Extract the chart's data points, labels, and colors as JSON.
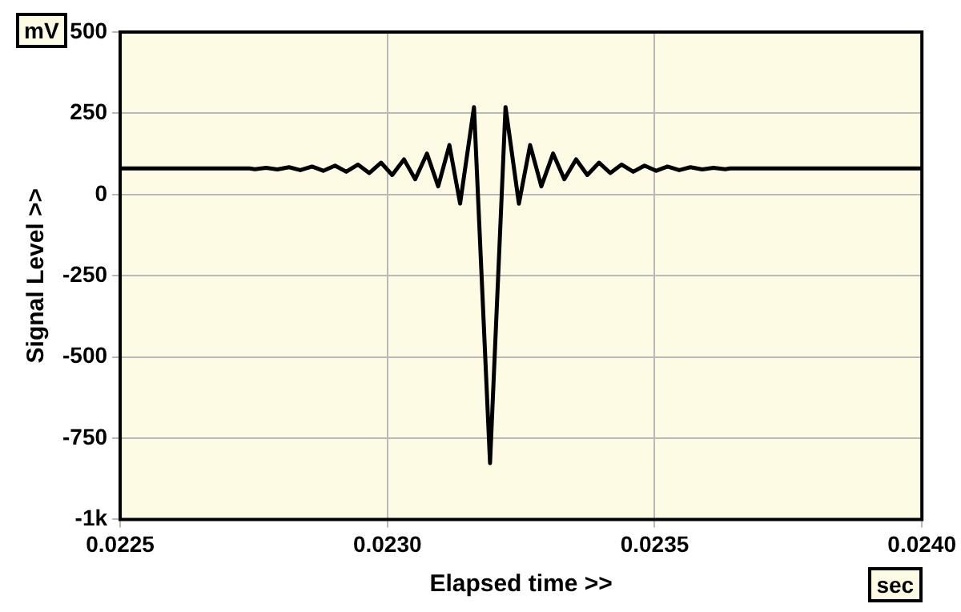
{
  "chart_data": {
    "type": "line",
    "xlabel": "Elapsed time >>",
    "ylabel": "Signal Level >>",
    "annotations": [
      "mV",
      "sec"
    ],
    "xlim": [
      0.0225,
      0.024
    ],
    "xticks": [
      0.0225,
      {
        "value": 0.023,
        "label": "0.0230"
      },
      0.0235,
      {
        "value": 0.024,
        "label": "0.0240"
      }
    ],
    "ylim": [
      -1000,
      500
    ],
    "yticks": [
      500,
      250,
      0,
      -250,
      -500,
      -750,
      {
        "value": -1000,
        "label": "-1k"
      }
    ],
    "grid": true,
    "legend": false,
    "marker": "none",
    "line_style": "solid",
    "series": [
      {
        "color": "#000000",
        "x": [
          0.0225,
          0.022742,
          0.022752,
          0.022773,
          0.022794,
          0.022816,
          0.022837,
          0.022859,
          0.02288,
          0.022902,
          0.022923,
          0.022945,
          0.022966,
          0.022988,
          0.023009,
          0.023031,
          0.023052,
          0.023074,
          0.023095,
          0.023116,
          0.023136,
          0.023162,
          0.023192,
          0.023221,
          0.023246,
          0.023267,
          0.023288,
          0.02331,
          0.023331,
          0.023353,
          0.023374,
          0.023396,
          0.023417,
          0.023438,
          0.02346,
          0.023481,
          0.023503,
          0.023524,
          0.023546,
          0.023567,
          0.023589,
          0.02361,
          0.023632,
          0.023641,
          0.024
        ],
        "values": [
          80,
          80,
          78,
          82,
          77,
          84,
          75,
          86,
          73,
          89,
          70,
          92,
          66,
          98,
          60,
          108,
          47,
          126,
          25,
          152,
          -28,
          269,
          -827,
          269,
          -28,
          152,
          25,
          126,
          47,
          108,
          60,
          98,
          66,
          92,
          70,
          89,
          73,
          86,
          75,
          84,
          77,
          82,
          78,
          80,
          80
        ]
      }
    ]
  }
}
